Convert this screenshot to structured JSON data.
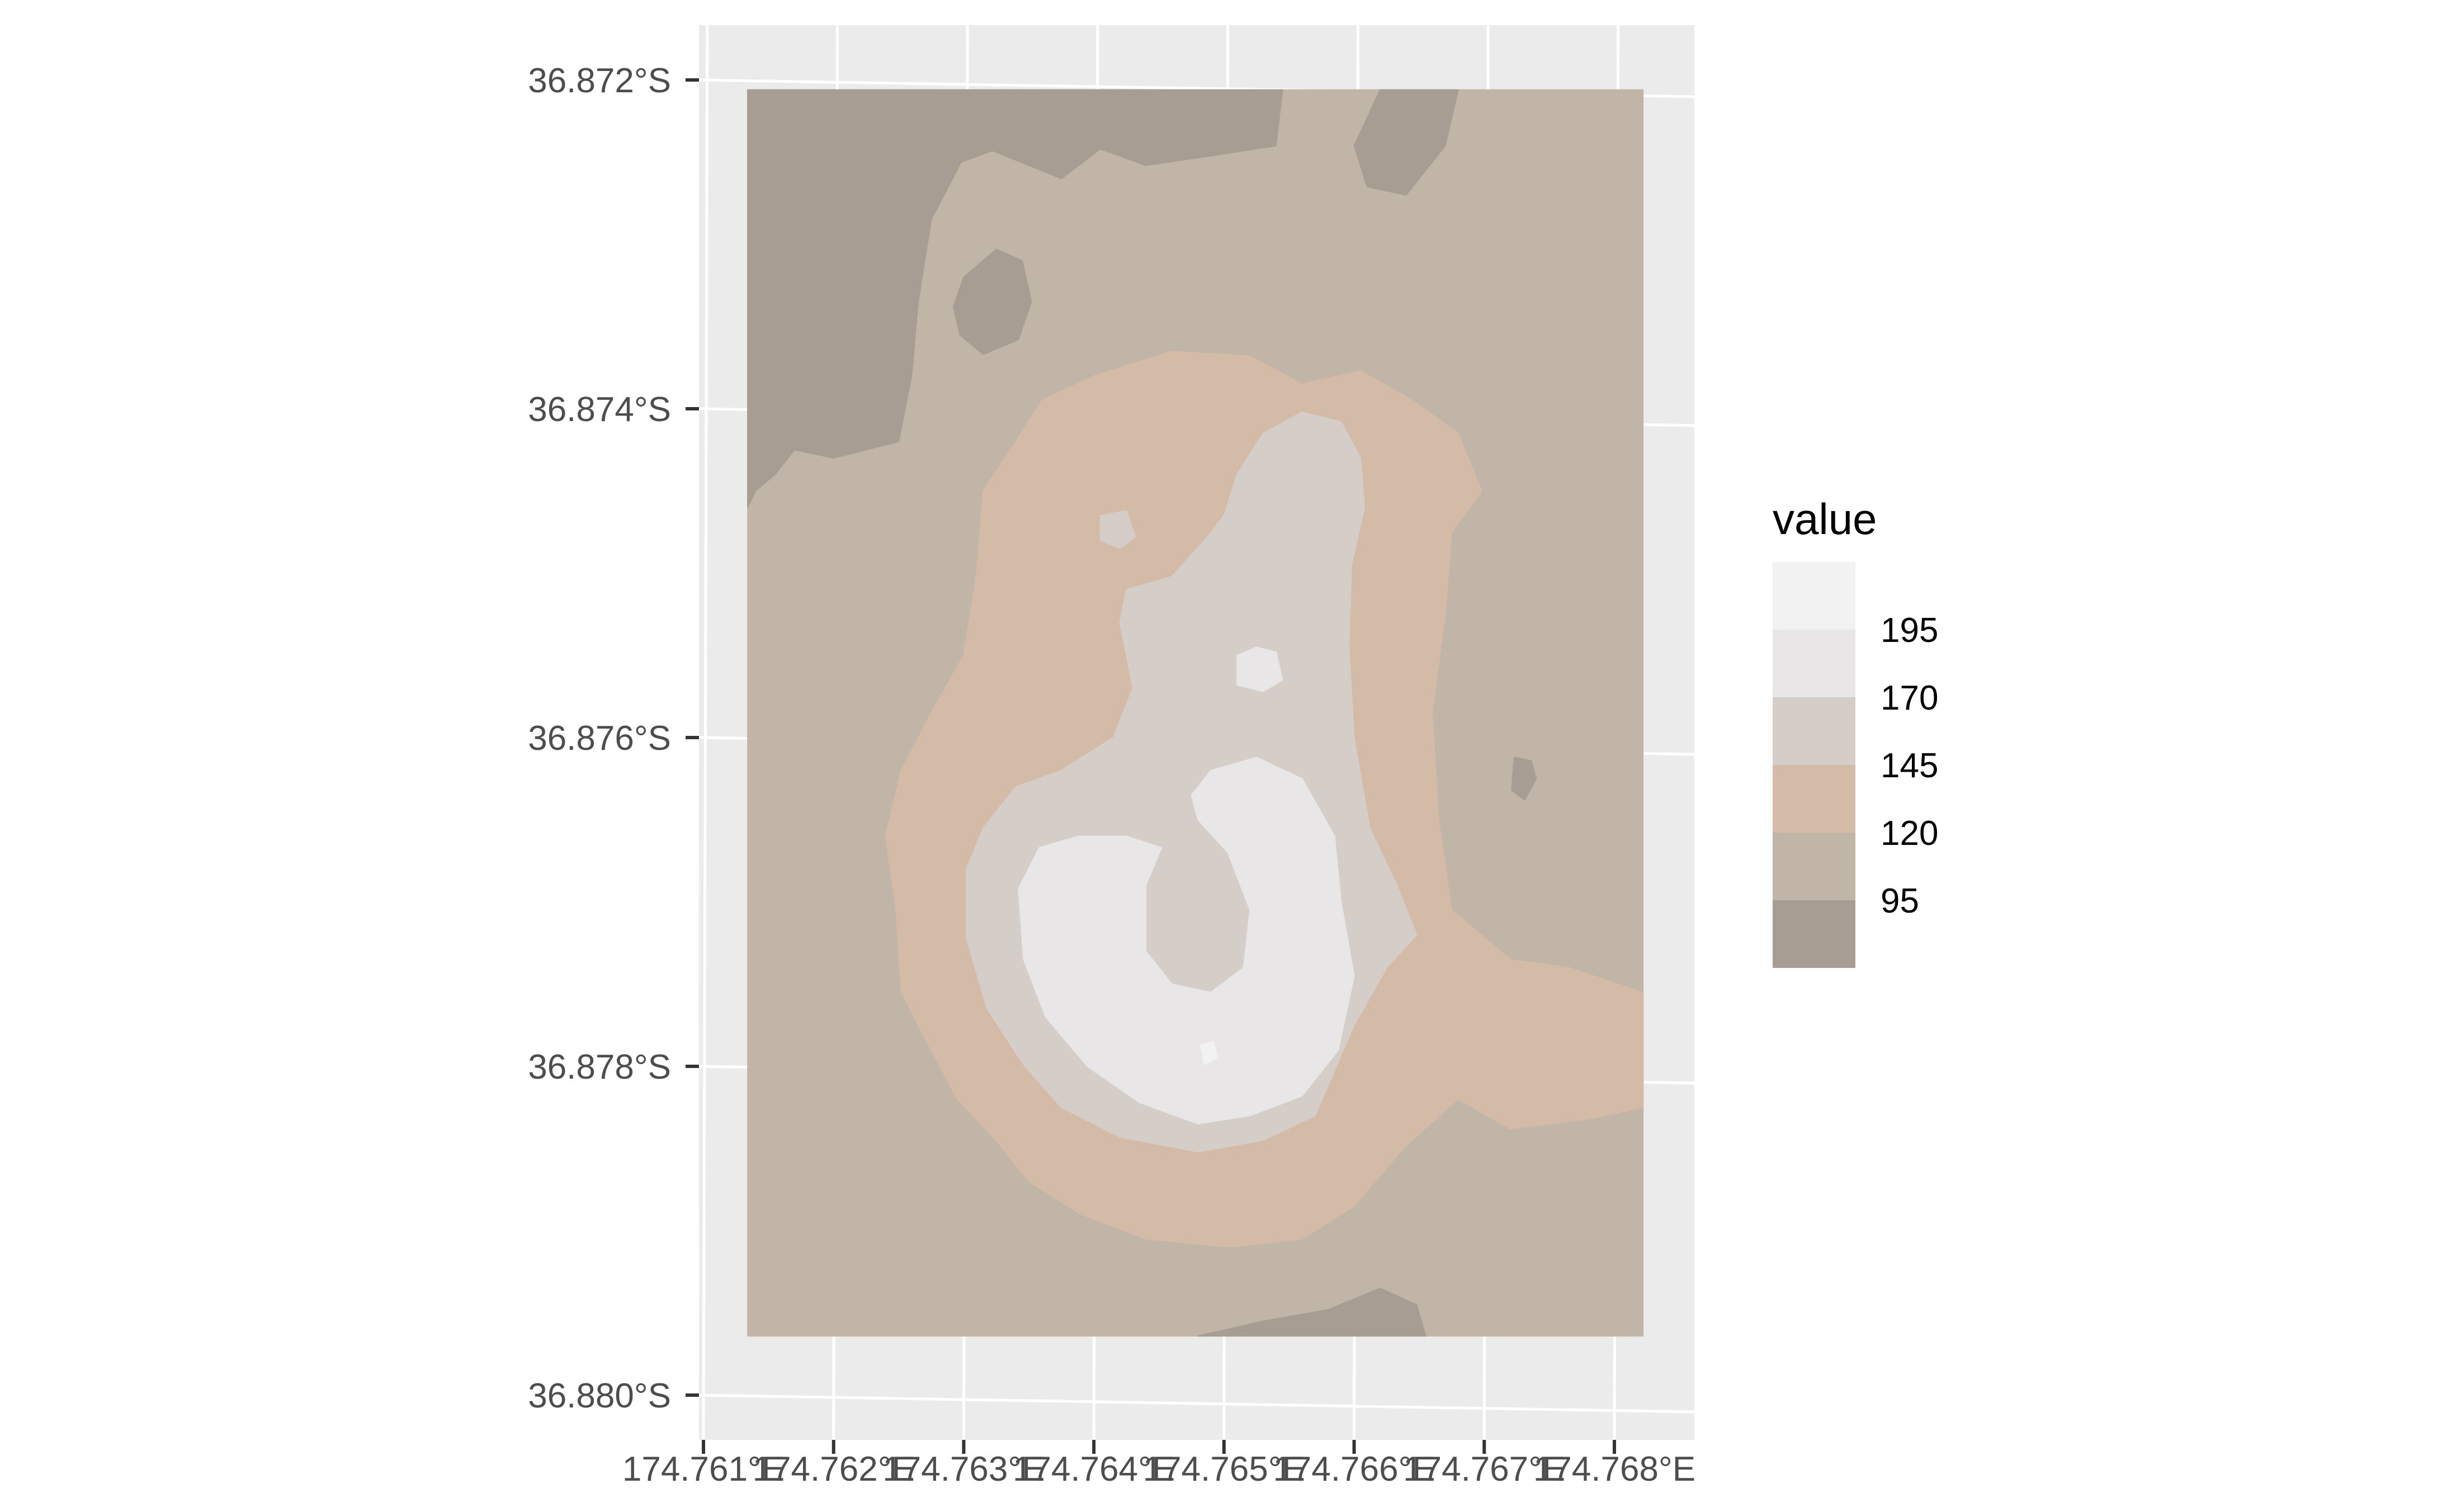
{
  "chart_data": {
    "type": "heatmap",
    "title": "",
    "xlabel": "",
    "ylabel": "",
    "grid": true,
    "legend_position": "right",
    "x_ticks": [
      "174.761°E",
      "174.762°E",
      "174.763°E",
      "174.764°E",
      "174.765°E",
      "174.766°E",
      "174.767°E",
      "174.768°E"
    ],
    "y_ticks": [
      "36.872°S",
      "36.874°S",
      "36.876°S",
      "36.878°S",
      "36.880°S"
    ],
    "x_tick_values": [
      174.761,
      174.762,
      174.763,
      174.764,
      174.765,
      174.766,
      174.767,
      174.768
    ],
    "y_tick_values": [
      -36.872,
      -36.874,
      -36.876,
      -36.878,
      -36.88
    ],
    "xlim": [
      174.761,
      174.7685
    ],
    "ylim": [
      -36.88,
      -36.872
    ],
    "raster_extent": {
      "lon": [
        174.76134,
        174.76822
      ],
      "lat": [
        -36.87964,
        -36.87206
      ]
    },
    "legend": {
      "title": "value",
      "labels": [
        "195",
        "170",
        "145",
        "120",
        "95"
      ],
      "bins": [
        {
          "range": [
            195,
            220
          ],
          "color": "#f2f2f2"
        },
        {
          "range": [
            170,
            195
          ],
          "color": "#e8e6e6"
        },
        {
          "range": [
            145,
            170
          ],
          "color": "#d5cdc8"
        },
        {
          "range": [
            120,
            145
          ],
          "color": "#d3bba8"
        },
        {
          "range": [
            95,
            120
          ],
          "color": "#c1b5a7"
        },
        {
          "range": [
            70,
            95
          ],
          "color": "#a79d92"
        }
      ]
    },
    "regions": [
      {
        "name": "background",
        "value": 110,
        "polygon": [
          [
            174.76134,
            -36.87206
          ],
          [
            174.76822,
            -36.87206
          ],
          [
            174.76822,
            -36.87964
          ],
          [
            174.76134,
            -36.87964
          ]
        ]
      },
      {
        "name": "northwest-low",
        "value": 85,
        "polygon": [
          [
            174.76134,
            -36.87206
          ],
          [
            174.76545,
            -36.87206
          ],
          [
            174.7654,
            -36.8724
          ],
          [
            174.765,
            -36.87245
          ],
          [
            174.7644,
            -36.87252
          ],
          [
            174.76405,
            -36.87242
          ],
          [
            174.76375,
            -36.8726
          ],
          [
            174.76322,
            -36.87243
          ],
          [
            174.76298,
            -36.8725
          ],
          [
            174.76275,
            -36.87285
          ],
          [
            174.76265,
            -36.87335
          ],
          [
            174.7626,
            -36.8738
          ],
          [
            174.7625,
            -36.8742
          ],
          [
            174.762,
            -36.8743
          ],
          [
            174.7617,
            -36.87425
          ],
          [
            174.76155,
            -36.8744
          ],
          [
            174.7614,
            -36.8745
          ],
          [
            174.76134,
            -36.8746
          ]
        ]
      },
      {
        "name": "north-low",
        "value": 85,
        "polygon": [
          [
            174.7662,
            -36.87206
          ],
          [
            174.7668,
            -36.87206
          ],
          [
            174.7667,
            -36.8724
          ],
          [
            174.7664,
            -36.8727
          ],
          [
            174.7661,
            -36.87265
          ],
          [
            174.766,
            -36.8724
          ]
        ]
      },
      {
        "name": "small-hill-low",
        "value": 85,
        "polygon": [
          [
            174.763,
            -36.8732
          ],
          [
            174.76325,
            -36.87303
          ],
          [
            174.76345,
            -36.8731
          ],
          [
            174.76352,
            -36.87335
          ],
          [
            174.76342,
            -36.87358
          ],
          [
            174.76315,
            -36.87367
          ],
          [
            174.76297,
            -36.87355
          ],
          [
            174.76292,
            -36.87338
          ]
        ]
      },
      {
        "name": "east-low",
        "value": 85,
        "polygon": [
          [
            174.76723,
            -36.87612
          ],
          [
            174.76736,
            -36.87614
          ],
          [
            174.7674,
            -36.87625
          ],
          [
            174.76731,
            -36.87638
          ],
          [
            174.76721,
            -36.87632
          ]
        ]
      },
      {
        "name": "south-low",
        "value": 85,
        "polygon": [
          [
            174.7648,
            -36.87964
          ],
          [
            174.7653,
            -36.87955
          ],
          [
            174.7658,
            -36.87948
          ],
          [
            174.7662,
            -36.87935
          ],
          [
            174.76648,
            -36.87945
          ],
          [
            174.76655,
            -36.87964
          ]
        ]
      },
      {
        "name": "mid-slope",
        "value": 132,
        "polygon": [
          [
            174.7646,
            -36.87365
          ],
          [
            174.7652,
            -36.87368
          ],
          [
            174.7656,
            -36.87385
          ],
          [
            174.76605,
            -36.87377
          ],
          [
            174.76645,
            -36.87395
          ],
          [
            174.7668,
            -36.87415
          ],
          [
            174.76698,
            -36.8745
          ],
          [
            174.76675,
            -36.87475
          ],
          [
            174.7667,
            -36.87525
          ],
          [
            174.7666,
            -36.87585
          ],
          [
            174.76665,
            -36.8765
          ],
          [
            174.76675,
            -36.87705
          ],
          [
            174.7672,
            -36.87735
          ],
          [
            174.76765,
            -36.8774
          ],
          [
            174.76822,
            -36.87755
          ],
          [
            174.76822,
            -36.87825
          ],
          [
            174.7678,
            -36.87832
          ],
          [
            174.7672,
            -36.87838
          ],
          [
            174.7668,
            -36.8782
          ],
          [
            174.7664,
            -36.87848
          ],
          [
            174.766,
            -36.87885
          ],
          [
            174.7656,
            -36.87905
          ],
          [
            174.76505,
            -36.8791
          ],
          [
            174.7644,
            -36.87905
          ],
          [
            174.7639,
            -36.8789
          ],
          [
            174.7635,
            -36.8787
          ],
          [
            174.76325,
            -36.87845
          ],
          [
            174.76295,
            -36.8782
          ],
          [
            174.76275,
            -36.8779
          ],
          [
            174.76252,
            -36.87755
          ],
          [
            174.76248,
            -36.87705
          ],
          [
            174.7624,
            -36.8766
          ],
          [
            174.76252,
            -36.8762
          ],
          [
            174.76275,
            -36.87585
          ],
          [
            174.763,
            -36.8755
          ],
          [
            174.7631,
            -36.875
          ],
          [
            174.76315,
            -36.8745
          ],
          [
            174.7634,
            -36.8742
          ],
          [
            174.7636,
            -36.87395
          ],
          [
            174.764,
            -36.8738
          ]
        ]
      },
      {
        "name": "upper-plateau",
        "value": 158,
        "polygon": [
          [
            174.7653,
            -36.87415
          ],
          [
            174.7656,
            -36.87402
          ],
          [
            174.7659,
            -36.87408
          ],
          [
            174.76605,
            -36.8743
          ],
          [
            174.76608,
            -36.8746
          ],
          [
            174.76598,
            -36.87495
          ],
          [
            174.76596,
            -36.87545
          ],
          [
            174.766,
            -36.876
          ],
          [
            174.76612,
            -36.87655
          ],
          [
            174.76633,
            -36.8769
          ],
          [
            174.76648,
            -36.8772
          ],
          [
            174.76625,
            -36.8774
          ],
          [
            174.766,
            -36.87775
          ],
          [
            174.7657,
            -36.8783
          ],
          [
            174.7653,
            -36.87845
          ],
          [
            174.7648,
            -36.87852
          ],
          [
            174.7642,
            -36.87843
          ],
          [
            174.76375,
            -36.87825
          ],
          [
            174.76345,
            -36.87798
          ],
          [
            174.76318,
            -36.87765
          ],
          [
            174.76302,
            -36.87722
          ],
          [
            174.76302,
            -36.8768
          ],
          [
            174.76315,
            -36.87655
          ],
          [
            174.7634,
            -36.8763
          ],
          [
            174.76375,
            -36.8762
          ],
          [
            174.76415,
            -36.876
          ],
          [
            174.7643,
            -36.8757
          ],
          [
            174.7642,
            -36.8753
          ],
          [
            174.76425,
            -36.8751
          ],
          [
            174.7646,
            -36.87502
          ],
          [
            174.76485,
            -36.8748
          ],
          [
            174.765,
            -36.87465
          ],
          [
            174.7651,
            -36.8744
          ]
        ]
      },
      {
        "name": "summit-crater",
        "value": 182,
        "polygon": [
          [
            174.7649,
            -36.8762
          ],
          [
            174.76525,
            -36.87612
          ],
          [
            174.7656,
            -36.87625
          ],
          [
            174.76585,
            -36.8766
          ],
          [
            174.7659,
            -36.877
          ],
          [
            174.766,
            -36.87745
          ],
          [
            174.76588,
            -36.8779
          ],
          [
            174.7656,
            -36.87818
          ],
          [
            174.7652,
            -36.8783
          ],
          [
            174.7648,
            -36.87835
          ],
          [
            174.76435,
            -36.87822
          ],
          [
            174.76395,
            -36.878
          ],
          [
            174.76363,
            -36.8777
          ],
          [
            174.76346,
            -36.87735
          ],
          [
            174.76342,
            -36.87692
          ],
          [
            174.76358,
            -36.87667
          ],
          [
            174.76388,
            -36.8766
          ],
          [
            174.76425,
            -36.8766
          ],
          [
            174.76452,
            -36.87667
          ],
          [
            174.7644,
            -36.8769
          ],
          [
            174.7644,
            -36.8773
          ],
          [
            174.7646,
            -36.8775
          ],
          [
            174.7649,
            -36.87755
          ],
          [
            174.76515,
            -36.8774
          ],
          [
            174.7652,
            -36.87705
          ],
          [
            174.76503,
            -36.8767
          ],
          [
            174.7648,
            -36.8765
          ],
          [
            174.76475,
            -36.87635
          ]
        ]
      },
      {
        "name": "small-peak-center",
        "value": 182,
        "polygon": [
          [
            174.7651,
            -36.8755
          ],
          [
            174.76525,
            -36.87545
          ],
          [
            174.7654,
            -36.87548
          ],
          [
            174.76545,
            -36.87565
          ],
          [
            174.7653,
            -36.87572
          ],
          [
            174.7651,
            -36.87568
          ]
        ]
      },
      {
        "name": "small-peak-west",
        "value": 160,
        "polygon": [
          [
            174.76405,
            -36.87465
          ],
          [
            174.76425,
            -36.87462
          ],
          [
            174.76432,
            -36.87478
          ],
          [
            174.7642,
            -36.87485
          ],
          [
            174.76405,
            -36.8748
          ]
        ]
      },
      {
        "name": "small-peak-south",
        "value": 200,
        "polygon": [
          [
            174.76482,
            -36.87787
          ],
          [
            174.76492,
            -36.87785
          ],
          [
            174.76495,
            -36.87795
          ],
          [
            174.76485,
            -36.87799
          ]
        ]
      }
    ]
  }
}
